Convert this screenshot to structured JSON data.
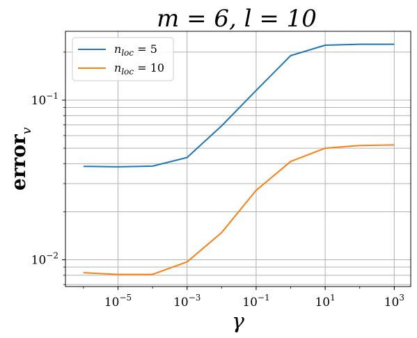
{
  "chart_data": {
    "type": "line",
    "title": "m = 6, l = 10",
    "xlabel": "γ",
    "ylabel": "error",
    "ylabel_sub": "v",
    "x_scale": "log",
    "y_scale": "log",
    "xlim": [
      3e-07,
      3000
    ],
    "ylim": [
      0.0068,
      0.27
    ],
    "grid": true,
    "legend_position": "top-left",
    "x_ticks": [
      {
        "base": "10",
        "exp": "−5",
        "value": 1e-05
      },
      {
        "base": "10",
        "exp": "−3",
        "value": 0.001
      },
      {
        "base": "10",
        "exp": "−1",
        "value": 0.1
      },
      {
        "base": "10",
        "exp": "1",
        "value": 10
      },
      {
        "base": "10",
        "exp": "3",
        "value": 1000
      }
    ],
    "y_ticks": [
      {
        "base": "10",
        "exp": "−1",
        "value": 0.1
      },
      {
        "base": "10",
        "exp": "−2",
        "value": 0.01
      }
    ],
    "x": [
      1e-06,
      1e-05,
      0.0001,
      0.001,
      0.01,
      0.1,
      1,
      10,
      100,
      1000
    ],
    "series": [
      {
        "name": "n_loc = 5",
        "label_main": "n",
        "label_sub": "loc",
        "label_rest": " = 5",
        "color": "#1f77b4",
        "values": [
          0.0385,
          0.0382,
          0.0386,
          0.0437,
          0.069,
          0.115,
          0.19,
          0.221,
          0.224,
          0.224
        ]
      },
      {
        "name": "n_loc = 10",
        "label_main": "n",
        "label_sub": "loc",
        "label_rest": " = 10",
        "color": "#ff7f0e",
        "values": [
          0.0083,
          0.0081,
          0.0081,
          0.0097,
          0.0148,
          0.0272,
          0.0413,
          0.05,
          0.052,
          0.0524
        ]
      }
    ]
  }
}
